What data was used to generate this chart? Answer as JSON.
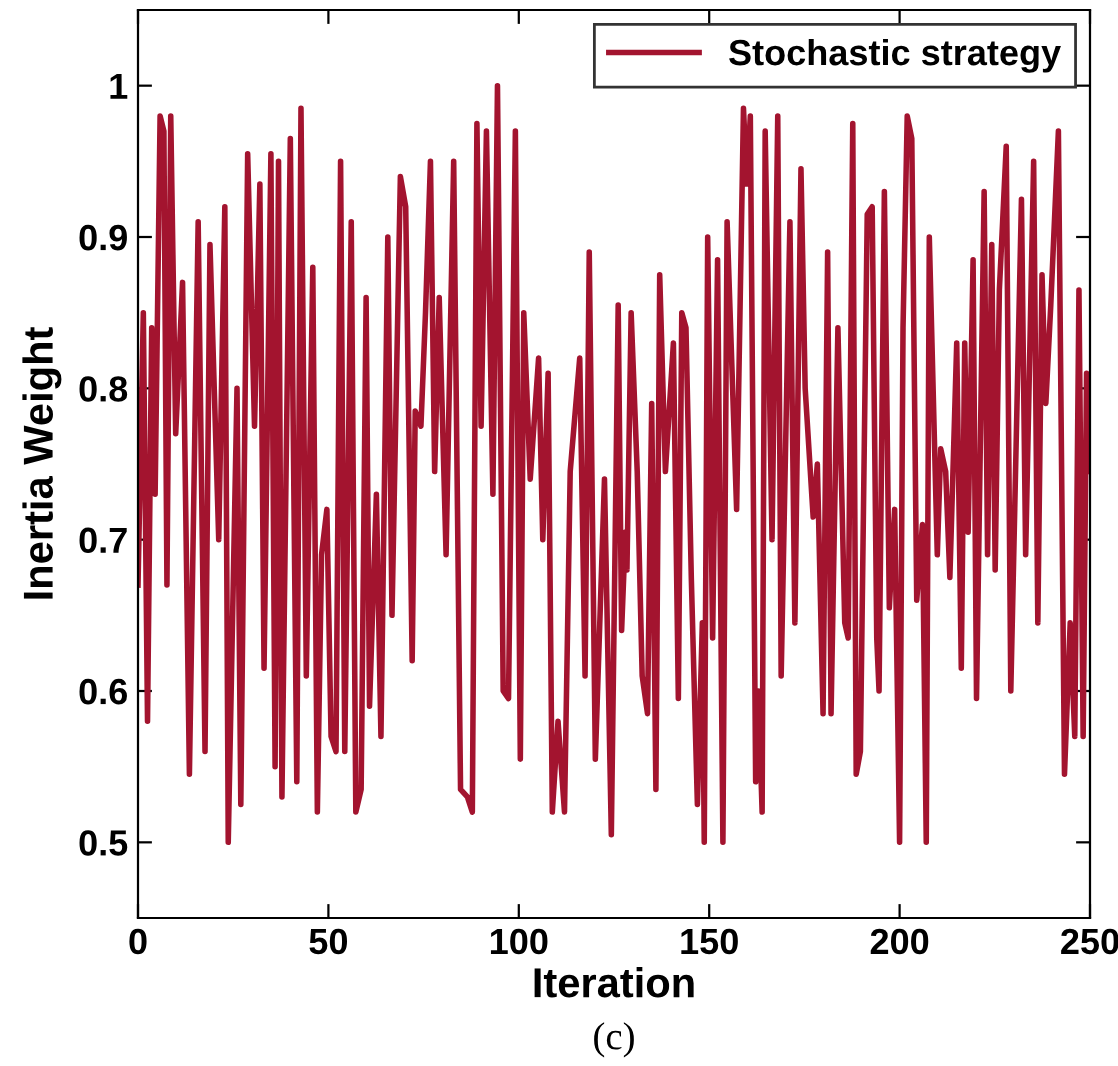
{
  "chart_data": {
    "type": "line",
    "xlabel": "Iteration",
    "ylabel": "Inertia Weight",
    "annotations": [
      "(c)"
    ],
    "xlim": [
      0,
      250
    ],
    "ylim": [
      0.45,
      1.05
    ],
    "xticks": [
      0,
      50,
      100,
      150,
      200,
      250
    ],
    "yticks": [
      0.5,
      0.6,
      0.7,
      0.8,
      0.9,
      1
    ],
    "grid": false,
    "legend": "top right",
    "marker": "none",
    "line_style": "solid",
    "series": [
      {
        "name": "Stochastic strategy",
        "color": "#a3142f",
        "x": [
          0,
          1.4,
          2.5,
          3.6,
          4.5,
          5.8,
          6.8,
          7.6,
          8.6,
          9.9,
          11.7,
          13.5,
          15.8,
          17.6,
          18.9,
          21.2,
          22.8,
          23.7,
          26,
          27,
          28.8,
          30.6,
          32,
          33.1,
          34.9,
          36,
          36.9,
          37.8,
          40,
          41.7,
          42.8,
          44.2,
          45.9,
          47.1,
          48.2,
          49.6,
          50.7,
          52,
          53.2,
          54.3,
          56,
          57.2,
          58.6,
          59.9,
          60.8,
          62.6,
          63.8,
          65.6,
          66.7,
          68.9,
          70.3,
          72,
          72.8,
          74.3,
          75.5,
          76.8,
          77.9,
          79.1,
          80.9,
          82.9,
          84.7,
          86.5,
          87.8,
          89,
          90.1,
          91.5,
          93.2,
          94.4,
          95.9,
          97.3,
          99.1,
          100.4,
          101.3,
          103,
          105.2,
          106.3,
          107.7,
          108.8,
          110.3,
          112,
          113.5,
          116,
          117.4,
          118.5,
          120.1,
          122.5,
          124.3,
          126.1,
          127,
          128,
          128.4,
          129.5,
          131.1,
          132.4,
          133.8,
          134.9,
          136,
          137,
          138.5,
          140.6,
          141.9,
          142.8,
          143.9,
          145.3,
          146.9,
          148.2,
          148.7,
          149.6,
          150.9,
          152.2,
          153.6,
          154.7,
          157.2,
          159,
          159.9,
          160.8,
          162.2,
          162.9,
          163.9,
          164.7,
          166.5,
          168,
          168.9,
          171.2,
          172.5,
          174.1,
          175.2,
          177.3,
          178.4,
          179.9,
          181.1,
          182,
          183.8,
          185.6,
          186.5,
          187.7,
          188.6,
          189.7,
          191.5,
          192.8,
          194,
          194.6,
          196,
          197.3,
          198.7,
          200,
          200.9,
          202,
          203.2,
          204.5,
          206,
          207,
          207.8,
          209.9,
          210.8,
          212.1,
          213.2,
          215,
          216.2,
          217.1,
          218,
          219.3,
          220.2,
          222.2,
          223.1,
          224.2,
          225.1,
          226.2,
          228,
          229.2,
          232,
          233.1,
          235.2,
          236.3,
          237.4,
          238.4,
          239.7,
          241.7,
          243.3,
          244.8,
          246,
          247.1,
          248.2,
          249.1,
          250
        ],
        "values": [
          0.67,
          0.85,
          0.58,
          0.84,
          0.73,
          0.98,
          0.97,
          0.67,
          0.98,
          0.77,
          0.87,
          0.545,
          0.91,
          0.56,
          0.895,
          0.7,
          0.92,
          0.5,
          0.8,
          0.525,
          0.955,
          0.775,
          0.935,
          0.615,
          0.955,
          0.55,
          0.95,
          0.53,
          0.965,
          0.54,
          0.985,
          0.61,
          0.88,
          0.52,
          0.69,
          0.72,
          0.57,
          0.56,
          0.95,
          0.56,
          0.91,
          0.52,
          0.535,
          0.86,
          0.59,
          0.73,
          0.57,
          0.9,
          0.65,
          0.94,
          0.92,
          0.62,
          0.785,
          0.775,
          0.85,
          0.95,
          0.745,
          0.86,
          0.69,
          0.95,
          0.535,
          0.53,
          0.52,
          0.975,
          0.775,
          0.97,
          0.73,
          1.0,
          0.6,
          0.595,
          0.97,
          0.555,
          0.85,
          0.74,
          0.82,
          0.7,
          0.81,
          0.52,
          0.58,
          0.52,
          0.745,
          0.82,
          0.61,
          0.89,
          0.555,
          0.74,
          0.505,
          0.855,
          0.64,
          0.705,
          0.68,
          0.85,
          0.745,
          0.61,
          0.585,
          0.79,
          0.535,
          0.875,
          0.745,
          0.83,
          0.595,
          0.85,
          0.84,
          0.675,
          0.525,
          0.645,
          0.5,
          0.9,
          0.635,
          0.885,
          0.5,
          0.91,
          0.72,
          0.985,
          0.935,
          0.98,
          0.54,
          0.6,
          0.52,
          0.97,
          0.7,
          0.98,
          0.61,
          0.91,
          0.645,
          0.945,
          0.8,
          0.715,
          0.75,
          0.585,
          0.89,
          0.585,
          0.84,
          0.645,
          0.635,
          0.975,
          0.545,
          0.56,
          0.915,
          0.92,
          0.635,
          0.6,
          0.93,
          0.655,
          0.72,
          0.5,
          0.84,
          0.98,
          0.965,
          0.66,
          0.71,
          0.5,
          0.9,
          0.69,
          0.76,
          0.745,
          0.675,
          0.83,
          0.615,
          0.83,
          0.705,
          0.885,
          0.595,
          0.93,
          0.69,
          0.895,
          0.68,
          0.865,
          0.96,
          0.6,
          0.925,
          0.69,
          0.95,
          0.645,
          0.875,
          0.79,
          0.855,
          0.97,
          0.545,
          0.645,
          0.57,
          0.865,
          0.57,
          0.81,
          0.745
        ]
      }
    ]
  }
}
